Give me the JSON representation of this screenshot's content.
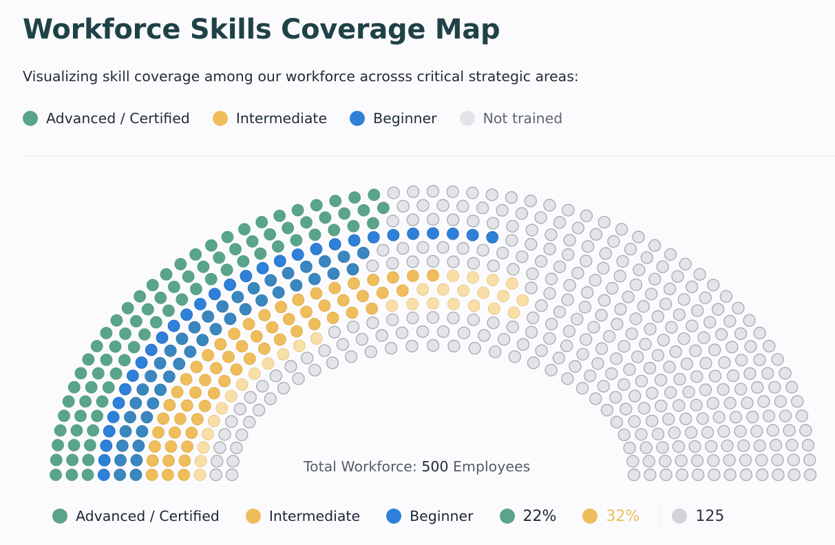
{
  "header": {
    "title": "Workforce Skills Coverage Map",
    "subtitle": "Visualizing skill coverage among our workforce acrosss critical strategic areas:"
  },
  "colors": {
    "advanced": "#5aa58a",
    "intermediate": "#efbd5b",
    "intermediate_light": "#f8dfa8",
    "beginner": "#2f80d8",
    "beginner_mid": "#3a87c0",
    "not_trained": "#e3e4e7",
    "not_trained_border": "#a9adb3",
    "title": "#1f4247"
  },
  "legend_top": [
    {
      "label": "Advanced / Certified",
      "color": "#5aa58a"
    },
    {
      "label": "Intermediate",
      "color": "#efbd5b"
    },
    {
      "label": "Beginner",
      "color": "#2f80d8"
    },
    {
      "label": "Not trained",
      "color": "#e3e4e7"
    }
  ],
  "total": {
    "prefix": "Total Workforce:",
    "value": "500",
    "suffix": "Employees"
  },
  "legend_bottom": [
    {
      "label": "Advanced / Certified",
      "color": "#5aa58a"
    },
    {
      "label": "Intermediate",
      "color": "#efbd5b"
    },
    {
      "label": "Beginner",
      "color": "#2f80d8"
    }
  ],
  "stats": [
    {
      "label": "22%",
      "color": "#5aa58a",
      "text_color": "#1c2735"
    },
    {
      "label": "32%",
      "color": "#efbd5b",
      "text_color": "#efbd5b"
    },
    {
      "label": "125",
      "color": "#d2d4d8",
      "text_color": "#2a3340"
    }
  ],
  "chart_data": {
    "type": "dot-arc (semicircular waffle)",
    "title": "Workforce Skills Coverage Map",
    "subtitle": "Visualizing skill coverage among our workforce acrosss critical strategic areas:",
    "total_employees": 500,
    "categories": [
      "Advanced / Certified",
      "Intermediate",
      "Beginner",
      "Not trained"
    ],
    "annotations": [
      "Total Workforce: 500 Employees",
      "22%",
      "32%",
      "125"
    ],
    "stat_labels": {
      "Advanced / Certified": "22%",
      "Intermediate": "32%",
      "Not trained": "125"
    },
    "geometry": {
      "center": [
        629,
        690
      ],
      "outer_radius": [
        548,
        412
      ],
      "inner_radius": [
        292,
        188
      ],
      "rings": 12,
      "dot_diameter": 17
    },
    "rings": [
      {
        "ring": 1,
        "segments": [
          {
            "cat": "advanced",
            "to_deg": 97
          }
        ]
      },
      {
        "ring": 2,
        "segments": [
          {
            "cat": "advanced",
            "to_deg": 97
          }
        ]
      },
      {
        "ring": 3,
        "segments": [
          {
            "cat": "advanced",
            "to_deg": 100
          }
        ]
      },
      {
        "ring": 4,
        "segments": [
          {
            "cat": "advanced",
            "to_deg": 180
          },
          {
            "cat": "beginner_bright",
            "to_deg": 78
          }
        ]
      },
      {
        "ring": 5,
        "segments": [
          {
            "cat": "beginner",
            "to_deg": 101
          }
        ]
      },
      {
        "ring": 6,
        "segments": [
          {
            "cat": "beginner",
            "to_deg": 103
          }
        ]
      },
      {
        "ring": 7,
        "segments": [
          {
            "cat": "intermediate",
            "to_deg": 88
          },
          {
            "cat": "intermediate_light",
            "to_deg": 72
          }
        ]
      },
      {
        "ring": 8,
        "segments": [
          {
            "cat": "intermediate",
            "to_deg": 96
          },
          {
            "cat": "intermediate_light",
            "to_deg": 70
          }
        ]
      },
      {
        "ring": 9,
        "segments": [
          {
            "cat": "intermediate",
            "to_deg": 102
          },
          {
            "cat": "intermediate_light",
            "to_deg": 68
          }
        ]
      },
      {
        "ring": 10,
        "segments": [
          {
            "cat": "intermediate_light",
            "to_deg": 120
          }
        ]
      },
      {
        "ring": 11,
        "segments": []
      },
      {
        "ring": 12,
        "segments": []
      }
    ]
  }
}
